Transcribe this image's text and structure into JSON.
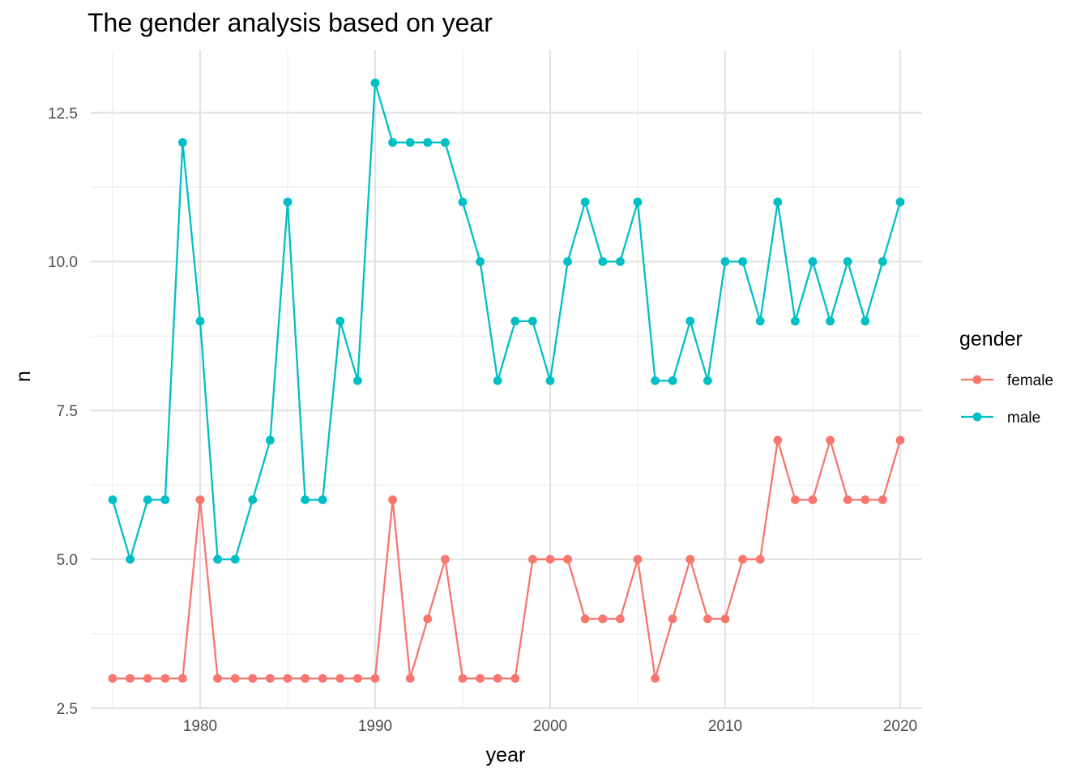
{
  "chart_data": {
    "type": "line",
    "title": "The gender analysis based on year",
    "xlabel": "year",
    "ylabel": "n",
    "xlim": [
      1973.75,
      2021.25
    ],
    "ylim": [
      2.5,
      13.55
    ],
    "xticks": [
      1980,
      1990,
      2000,
      2010,
      2020
    ],
    "xtick_labels": [
      "1980",
      "1990",
      "2000",
      "2010",
      "2020"
    ],
    "yticks": [
      2.5,
      5.0,
      7.5,
      10.0,
      12.5
    ],
    "ytick_labels": [
      "2.5",
      "5.0",
      "7.5",
      "10.0",
      "12.5"
    ],
    "grid": true,
    "legend": {
      "title": "gender",
      "position": "right",
      "entries": [
        "female",
        "male"
      ]
    },
    "x": [
      1975,
      1976,
      1977,
      1978,
      1979,
      1980,
      1981,
      1982,
      1983,
      1984,
      1985,
      1986,
      1987,
      1988,
      1989,
      1990,
      1991,
      1992,
      1993,
      1994,
      1995,
      1996,
      1997,
      1998,
      1999,
      2000,
      2001,
      2002,
      2003,
      2004,
      2005,
      2006,
      2007,
      2008,
      2009,
      2010,
      2011,
      2012,
      2013,
      2014,
      2015,
      2016,
      2017,
      2018,
      2019,
      2020
    ],
    "series": [
      {
        "name": "female",
        "color": "#F8766D",
        "values": [
          3,
          3,
          3,
          3,
          3,
          6,
          3,
          3,
          3,
          3,
          3,
          3,
          3,
          3,
          3,
          3,
          6,
          3,
          4,
          5,
          3,
          3,
          3,
          3,
          5,
          5,
          5,
          4,
          4,
          4,
          5,
          3,
          4,
          5,
          4,
          4,
          5,
          5,
          7,
          6,
          6,
          7,
          6,
          6,
          6,
          7
        ]
      },
      {
        "name": "male",
        "color": "#00BFC4",
        "values": [
          6,
          5,
          6,
          6,
          12,
          9,
          5,
          5,
          6,
          7,
          11,
          6,
          6,
          9,
          8,
          13,
          12,
          12,
          12,
          12,
          11,
          10,
          8,
          9,
          9,
          8,
          10,
          11,
          10,
          10,
          11,
          8,
          8,
          9,
          8,
          10,
          10,
          9,
          11,
          9,
          10,
          9,
          10,
          9,
          10,
          11
        ]
      }
    ]
  }
}
